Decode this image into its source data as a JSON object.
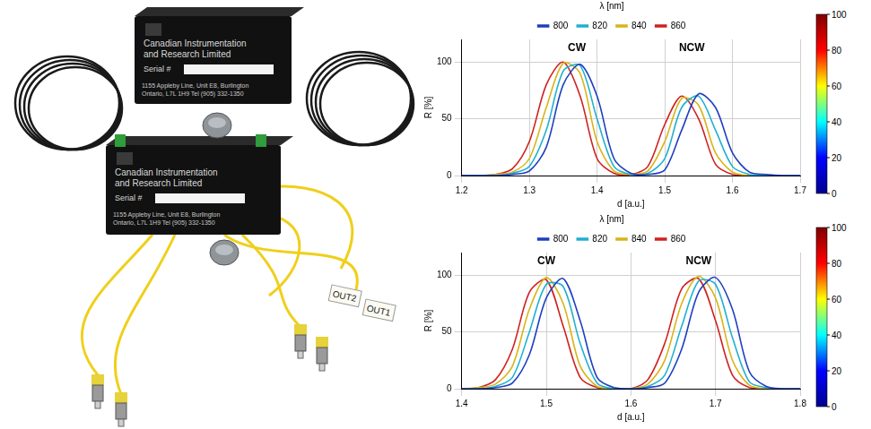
{
  "photo": {
    "boxes": [
      {
        "maker": [
          "Canadian Instrumentation",
          "and Research Limited"
        ],
        "serial": "Serial #",
        "address": [
          "1155 Appleby Line, Unit E8, Burlington",
          "Ontario, L7L 1H9  Tel (905) 332-1350"
        ]
      },
      {
        "maker": [
          "Canadian Instrumentation",
          "and Research Limited"
        ],
        "serial": "Serial #",
        "address": [
          "1155 Appleby Line, Unit E8, Burlington",
          "Ontario, L7L 1H9  Tel (905) 332-1350"
        ]
      }
    ],
    "tags": [
      "OUT2",
      "OUT1"
    ]
  },
  "chart_data": [
    {
      "type": "line",
      "x_label": "d [a.u.]",
      "y_label": "R [%]",
      "x": [
        1.2,
        1.225,
        1.25,
        1.275,
        1.3,
        1.325,
        1.35,
        1.375,
        1.4,
        1.425,
        1.45,
        1.475,
        1.5,
        1.525,
        1.55,
        1.575,
        1.6,
        1.625,
        1.65,
        1.675,
        1.7
      ],
      "series": [
        {
          "name": "800",
          "color": "#1f3fbf",
          "values": [
            0,
            0,
            0,
            1,
            4,
            25,
            80,
            98,
            70,
            15,
            2,
            1,
            5,
            40,
            72,
            60,
            20,
            3,
            1,
            0,
            0
          ]
        },
        {
          "name": "820",
          "color": "#20b0d0",
          "values": [
            0,
            0,
            0,
            2,
            8,
            40,
            92,
            97,
            50,
            8,
            1,
            2,
            15,
            60,
            70,
            40,
            8,
            1,
            0,
            0,
            0
          ]
        },
        {
          "name": "840",
          "color": "#d8b418",
          "values": [
            0,
            0,
            1,
            3,
            15,
            60,
            99,
            90,
            30,
            4,
            1,
            4,
            30,
            68,
            62,
            20,
            3,
            0,
            0,
            0,
            0
          ]
        },
        {
          "name": "860",
          "color": "#d02020",
          "values": [
            0,
            0,
            1,
            6,
            30,
            80,
            100,
            70,
            15,
            2,
            1,
            8,
            45,
            70,
            50,
            10,
            1,
            0,
            0,
            0,
            0
          ]
        }
      ],
      "xlim": [
        1.2,
        1.7
      ],
      "xticks": [
        1.2,
        1.3,
        1.4,
        1.5,
        1.6,
        1.7
      ],
      "ylim": [
        0,
        120
      ],
      "yticks": [
        0,
        50,
        100
      ],
      "grid": true,
      "legend": "top",
      "legend_title": "λ [nm]",
      "annotations": [
        {
          "text": "CW",
          "x": 1.37,
          "y": 112
        },
        {
          "text": "NCW",
          "x": 1.54,
          "y": 112
        }
      ],
      "colorbar": {
        "range": [
          0,
          100
        ],
        "ticks": [
          0,
          20,
          40,
          60,
          80,
          100
        ]
      }
    },
    {
      "type": "line",
      "x_label": "d [a.u.]",
      "y_label": "R [%]",
      "x": [
        1.4,
        1.42,
        1.44,
        1.46,
        1.48,
        1.5,
        1.52,
        1.54,
        1.56,
        1.58,
        1.6,
        1.62,
        1.64,
        1.66,
        1.68,
        1.7,
        1.72,
        1.74,
        1.76,
        1.78,
        1.8
      ],
      "series": [
        {
          "name": "800",
          "color": "#1f3fbf",
          "values": [
            0,
            0,
            1,
            5,
            30,
            80,
            97,
            60,
            10,
            1,
            0,
            1,
            5,
            35,
            85,
            98,
            70,
            15,
            2,
            0,
            0
          ]
        },
        {
          "name": "820",
          "color": "#20b0d0",
          "values": [
            0,
            0,
            2,
            10,
            50,
            92,
            90,
            40,
            5,
            0,
            0,
            2,
            12,
            55,
            95,
            92,
            45,
            6,
            1,
            0,
            0
          ]
        },
        {
          "name": "840",
          "color": "#d8b418",
          "values": [
            0,
            1,
            4,
            20,
            70,
            98,
            75,
            20,
            2,
            0,
            0,
            4,
            25,
            75,
            99,
            80,
            25,
            3,
            0,
            0,
            0
          ]
        },
        {
          "name": "860",
          "color": "#d02020",
          "values": [
            0,
            1,
            8,
            35,
            85,
            96,
            55,
            10,
            1,
            0,
            0,
            8,
            40,
            88,
            97,
            60,
            12,
            1,
            0,
            0,
            0
          ]
        }
      ],
      "xlim": [
        1.4,
        1.8
      ],
      "xticks": [
        1.4,
        1.5,
        1.6,
        1.7,
        1.8
      ],
      "ylim": [
        0,
        120
      ],
      "yticks": [
        0,
        50,
        100
      ],
      "grid": true,
      "legend": "top",
      "legend_title": "λ [nm]",
      "annotations": [
        {
          "text": "CW",
          "x": 1.5,
          "y": 112
        },
        {
          "text": "NCW",
          "x": 1.68,
          "y": 112
        }
      ],
      "colorbar": {
        "range": [
          0,
          100
        ],
        "ticks": [
          0,
          20,
          40,
          60,
          80,
          100
        ]
      }
    }
  ]
}
